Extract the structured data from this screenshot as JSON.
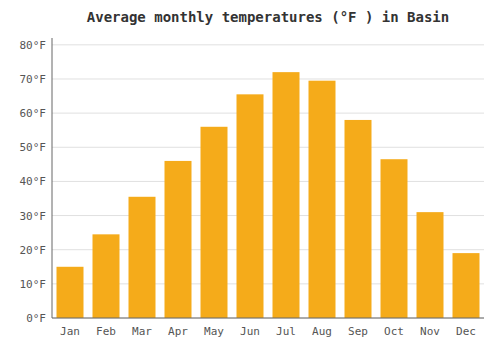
{
  "chart_data": {
    "type": "bar",
    "title": "Average monthly temperatures (°F ) in Basin",
    "categories": [
      "Jan",
      "Feb",
      "Mar",
      "Apr",
      "May",
      "Jun",
      "Jul",
      "Aug",
      "Sep",
      "Oct",
      "Nov",
      "Dec"
    ],
    "values": [
      15,
      24.5,
      35.5,
      46,
      56,
      65.5,
      72,
      69.5,
      58,
      46.5,
      31,
      19
    ],
    "color": "#F5AB1A",
    "ylim": [
      0,
      82
    ],
    "yticks": [
      {
        "value": 0,
        "label": "0°F"
      },
      {
        "value": 10,
        "label": "10°F"
      },
      {
        "value": 20,
        "label": "20°F"
      },
      {
        "value": 30,
        "label": "30°F"
      },
      {
        "value": 40,
        "label": "40°F"
      },
      {
        "value": 50,
        "label": "50°F"
      },
      {
        "value": 60,
        "label": "60°F"
      },
      {
        "value": 70,
        "label": "70°F"
      },
      {
        "value": 80,
        "label": "80°F"
      }
    ],
    "grid": true
  }
}
